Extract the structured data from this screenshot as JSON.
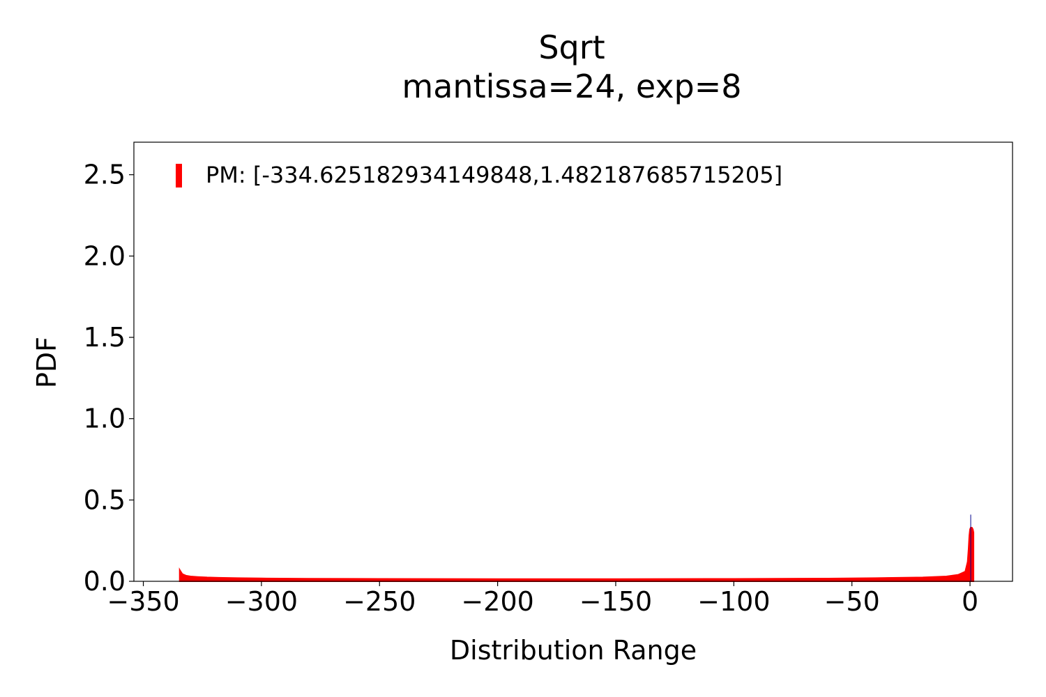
{
  "chart_data": {
    "type": "area",
    "title": "Sqrt",
    "subtitle": "mantissa=24, exp=8",
    "xlabel": "Distribution Range",
    "ylabel": "PDF",
    "xlim": [
      -354,
      18
    ],
    "ylim": [
      0,
      2.7
    ],
    "xticks": [
      -350,
      -300,
      -250,
      -200,
      -150,
      -100,
      -50,
      0
    ],
    "xtick_labels": [
      "−350",
      "−300",
      "−250",
      "−200",
      "−150",
      "−100",
      "−50",
      "0"
    ],
    "yticks": [
      0.0,
      0.5,
      1.0,
      1.5,
      2.0,
      2.5
    ],
    "ytick_labels": [
      "0.0",
      "0.5",
      "1.0",
      "1.5",
      "2.0",
      "2.5"
    ],
    "grid": false,
    "legend": {
      "placement": "top-left",
      "entries": [
        "PM: [-334.625182934149848,1.482187685715205]"
      ]
    },
    "series": [
      {
        "name": "PM: [-334.625182934149848,1.482187685715205]",
        "color": "#ff0000",
        "x": [
          -334.6,
          -334.4,
          -333.5,
          -332,
          -330,
          -327,
          -323,
          -318,
          -310,
          -300,
          -280,
          -250,
          -200,
          -150,
          -100,
          -60,
          -40,
          -20,
          -10,
          -5,
          -2,
          -1,
          -0.6,
          -0.3,
          0,
          0.3,
          0.8,
          1.2,
          1.48
        ],
        "y": [
          0.07,
          0.065,
          0.045,
          0.035,
          0.03,
          0.027,
          0.024,
          0.022,
          0.02,
          0.018,
          0.016,
          0.015,
          0.014,
          0.014,
          0.015,
          0.017,
          0.02,
          0.024,
          0.03,
          0.04,
          0.06,
          0.12,
          0.2,
          0.28,
          0.32,
          0.33,
          0.33,
          0.32,
          0.3
        ]
      }
    ],
    "spike": {
      "x": 0.3,
      "y": 0.41,
      "color": "#00008b"
    }
  }
}
